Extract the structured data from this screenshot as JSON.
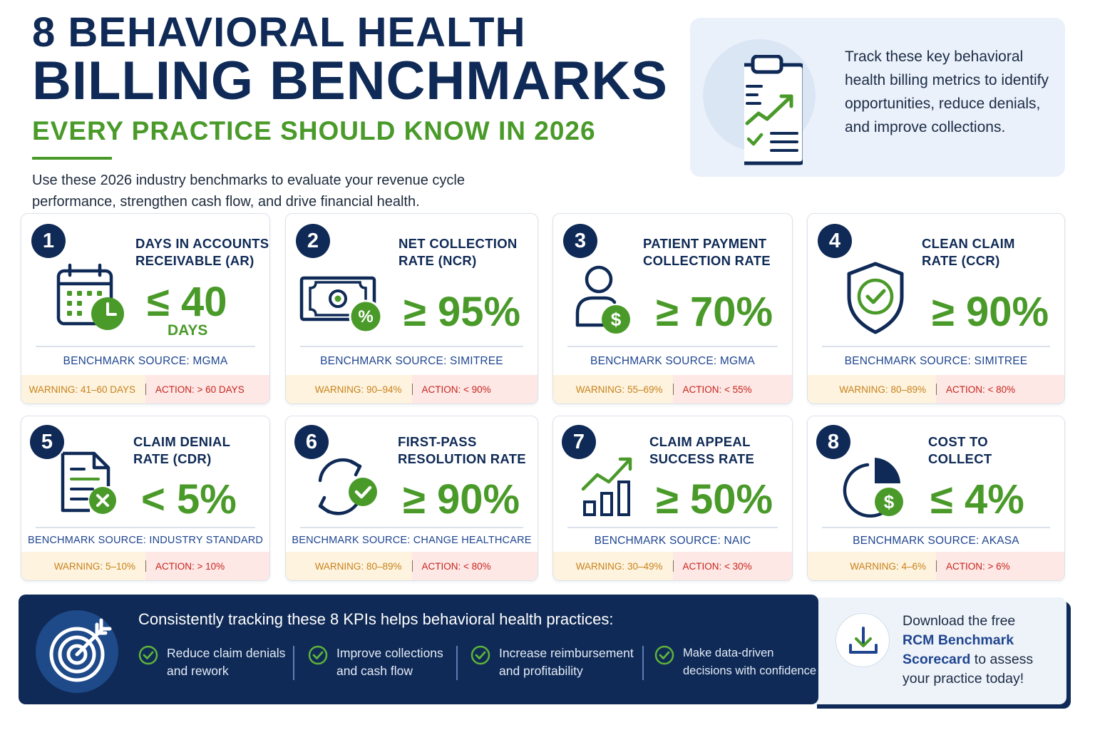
{
  "header": {
    "title_line1": "8 BEHAVIORAL HEALTH",
    "title_line2": "BILLING BENCHMARKS",
    "subtitle": "EVERY PRACTICE SHOULD KNOW IN 2026",
    "intro": "Use these 2026 industry benchmarks to evaluate your revenue cycle performance, strengthen cash flow, and drive financial health."
  },
  "track_box": {
    "text": "Track these key behavioral health billing metrics to identify opportunities, reduce denials, and improve collections.",
    "icon": "clipboard-chart-icon"
  },
  "source_prefix": "BENCHMARK SOURCE:",
  "warning_prefix": "WARNING:",
  "action_prefix": "ACTION:",
  "cards": [
    {
      "number": "1",
      "title_l1": "DAYS IN ACCOUNTS",
      "title_l2": "RECEIVABLE (AR)",
      "value": "≤ 40",
      "unit": "DAYS",
      "source": "MGMA",
      "warning": "41–60 DAYS",
      "action": "> 60 DAYS",
      "icon": "calendar-clock-icon"
    },
    {
      "number": "2",
      "title_l1": "NET COLLECTION",
      "title_l2": "RATE (NCR)",
      "value": "≥ 95%",
      "unit": "",
      "source": "SIMITREE",
      "warning": "90–94%",
      "action": "< 90%",
      "icon": "money-percent-icon"
    },
    {
      "number": "3",
      "title_l1": "PATIENT PAYMENT",
      "title_l2": "COLLECTION RATE",
      "value": "≥ 70%",
      "unit": "",
      "source": "MGMA",
      "warning": "55–69%",
      "action": "< 55%",
      "icon": "patient-dollar-icon"
    },
    {
      "number": "4",
      "title_l1": "CLEAN CLAIM",
      "title_l2": "RATE (CCR)",
      "value": "≥ 90%",
      "unit": "",
      "source": "SIMITREE",
      "warning": "80–89%",
      "action": "< 80%",
      "icon": "shield-check-icon"
    },
    {
      "number": "5",
      "title_l1": "CLAIM DENIAL",
      "title_l2": "RATE (CDR)",
      "value": "< 5%",
      "unit": "",
      "source": "INDUSTRY STANDARD",
      "warning": "5–10%",
      "action": "> 10%",
      "icon": "document-x-icon"
    },
    {
      "number": "6",
      "title_l1": "FIRST-PASS",
      "title_l2": "RESOLUTION RATE",
      "value": "≥ 90%",
      "unit": "",
      "source": "CHANGE HEALTHCARE",
      "warning": "80–89%",
      "action": "< 80%",
      "icon": "cycle-check-icon"
    },
    {
      "number": "7",
      "title_l1": "CLAIM APPEAL",
      "title_l2": "SUCCESS RATE",
      "value": "≥ 50%",
      "unit": "",
      "source": "NAIC",
      "warning": "30–49%",
      "action": "< 30%",
      "icon": "bar-chart-up-icon"
    },
    {
      "number": "8",
      "title_l1": "COST TO",
      "title_l2": "COLLECT",
      "value": "≤ 4%",
      "unit": "",
      "source": "AKASA",
      "warning": "4–6%",
      "action": "> 6%",
      "icon": "pie-dollar-icon"
    }
  ],
  "bottom": {
    "heading": "Consistently tracking these 8 KPIs helps behavioral health practices:",
    "items": [
      {
        "l1": "Reduce claim denials",
        "l2": "and rework"
      },
      {
        "l1": "Improve collections",
        "l2": "and cash flow"
      },
      {
        "l1": "Increase reimbursement",
        "l2": "and profitability"
      },
      {
        "l1": "Make data-driven",
        "l2": "decisions with confidence"
      }
    ]
  },
  "download": {
    "pre": "Download the free",
    "bold": "RCM Benchmark Scorecard",
    "post": " to assess your practice today!"
  },
  "colors": {
    "navy": "#0f2a56",
    "green": "#4a9a2a",
    "warning": "#c9821a",
    "action": "#c8241c",
    "source": "#1f4590"
  }
}
